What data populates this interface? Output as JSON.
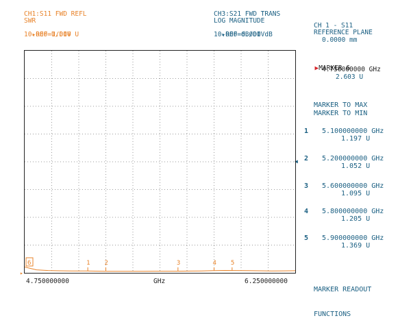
{
  "ch1": {
    "title": "CH1:S11 FWD REFL",
    "format": "SWR",
    "ref": "REF=1.000 U",
    "scale": "10.000 U/DIV"
  },
  "ch3": {
    "title": "CH3:S21 FWD TRANS",
    "format": "LOG MAGNITUDE",
    "ref": "REF=0.000 dB",
    "scale": "10.000 dB/DIV"
  },
  "menu": {
    "title1": "CH 1 - S11",
    "title2": "REFERENCE PLANE",
    "title3": "0.0000 mm",
    "active_marker": {
      "label": "MARKER 6",
      "freq": "4.750000000 GHz",
      "value": "2.603 U"
    },
    "marker_to_max": "MARKER TO MAX",
    "marker_to_min": "MARKER TO MIN",
    "markers": [
      {
        "num": "1",
        "freq": "5.100000000 GHz",
        "value": "1.197 U"
      },
      {
        "num": "2",
        "freq": "5.200000000 GHz",
        "value": "1.052 U"
      },
      {
        "num": "3",
        "freq": "5.600000000 GHz",
        "value": "1.095 U"
      },
      {
        "num": "4",
        "freq": "5.800000000 GHz",
        "value": "1.205 U"
      },
      {
        "num": "5",
        "freq": "5.900000000 GHz",
        "value": "1.369 U"
      }
    ],
    "readout1": "MARKER READOUT",
    "readout2": "FUNCTIONS"
  },
  "axis": {
    "start": "4.750000000",
    "unit": "GHz",
    "stop": "6.250000000"
  },
  "plot_markers": [
    {
      "label": "6",
      "freq": 4.75
    },
    {
      "label": "1",
      "freq": 5.1
    },
    {
      "label": "2",
      "freq": 5.2
    },
    {
      "label": "3",
      "freq": 5.6
    },
    {
      "label": "4",
      "freq": 5.8
    },
    {
      "label": "5",
      "freq": 5.9
    }
  ],
  "trace": {
    "freq_start": 4.75,
    "freq_stop": 6.25,
    "swr_values": [
      2.603,
      1.6,
      1.35,
      1.25,
      1.2,
      1.197,
      1.12,
      1.052,
      1.05,
      1.07,
      1.08,
      1.1,
      1.095,
      1.1,
      1.15,
      1.205,
      1.3,
      1.369,
      1.35,
      1.3,
      1.25,
      1.2,
      1.22,
      1.28
    ],
    "ref_value": 1.0,
    "units_per_div": 10.0,
    "color": "#e8832a"
  },
  "colors": {
    "ch1": "#e8832a",
    "menu": "#1a5f82",
    "active": "#d6242a"
  }
}
